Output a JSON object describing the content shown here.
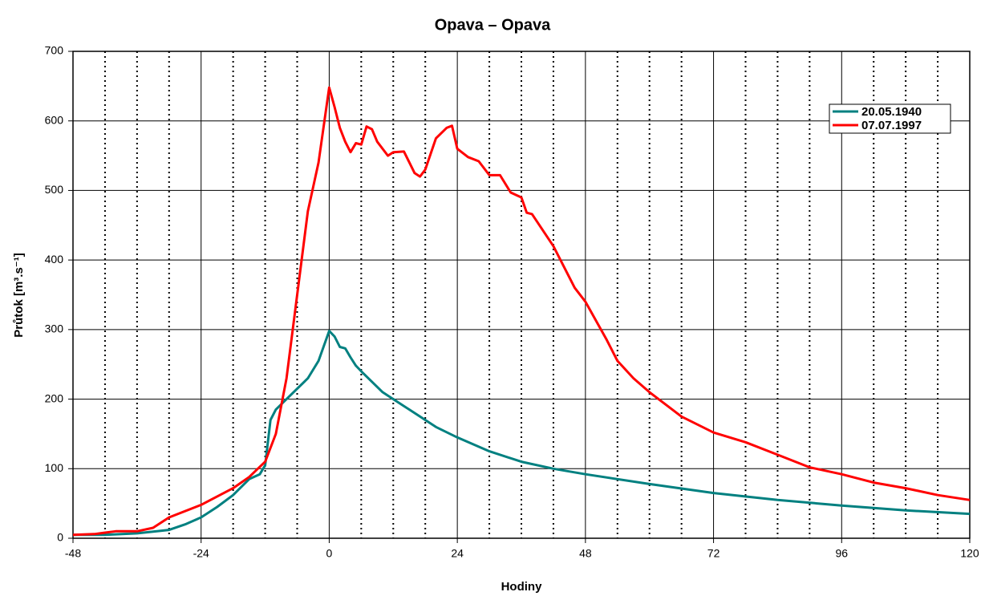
{
  "chart_data": {
    "type": "line",
    "title": "Opava – Opava",
    "xlabel": "Hodiny",
    "ylabel": "Průtok [m³.s⁻¹]",
    "xlim": [
      -48,
      120
    ],
    "xticks": [
      -48,
      -24,
      0,
      24,
      48,
      72,
      96,
      120
    ],
    "ylim": [
      0,
      700
    ],
    "yticks": [
      0,
      100,
      200,
      300,
      400,
      500,
      600,
      700
    ],
    "grid": true,
    "minor_grid_step": 6,
    "legend": "upper right",
    "series": [
      {
        "name": "20.05.1940",
        "color": "#008080",
        "x": [
          -48,
          -42,
          -36,
          -30,
          -27,
          -24,
          -21,
          -18,
          -15,
          -13,
          -12,
          -11,
          -10,
          -8,
          -6,
          -4,
          -2,
          0,
          1,
          2,
          3,
          4,
          5,
          6,
          8,
          10,
          12,
          16,
          20,
          24,
          30,
          36,
          42,
          48,
          60,
          72,
          84,
          96,
          108,
          120
        ],
        "values": [
          5,
          5,
          7,
          12,
          20,
          30,
          45,
          62,
          85,
          92,
          105,
          170,
          185,
          200,
          215,
          230,
          255,
          298,
          290,
          275,
          273,
          260,
          248,
          240,
          225,
          210,
          200,
          180,
          160,
          145,
          125,
          110,
          100,
          92,
          78,
          65,
          55,
          47,
          40,
          35
        ]
      },
      {
        "name": "07.07.1997",
        "color": "#ff0000",
        "x": [
          -48,
          -44,
          -40,
          -36,
          -33,
          -30,
          -24,
          -18,
          -15,
          -12,
          -10,
          -8,
          -6,
          -4,
          -2,
          0,
          1,
          2,
          3,
          4,
          5,
          6,
          7,
          8,
          9,
          11,
          12,
          14,
          16,
          17,
          18,
          20,
          22,
          23,
          24,
          26,
          28,
          30,
          32,
          34,
          36,
          37,
          38,
          42,
          46,
          48,
          52,
          54,
          57,
          60,
          66,
          72,
          78,
          84,
          90,
          96,
          102,
          108,
          114,
          120
        ],
        "values": [
          5,
          6,
          10,
          10,
          15,
          30,
          48,
          72,
          88,
          110,
          150,
          230,
          350,
          470,
          540,
          648,
          620,
          590,
          570,
          555,
          568,
          566,
          592,
          588,
          570,
          550,
          555,
          556,
          525,
          520,
          530,
          575,
          590,
          593,
          560,
          548,
          542,
          522,
          522,
          497,
          490,
          468,
          466,
          420,
          360,
          340,
          285,
          255,
          230,
          210,
          175,
          152,
          138,
          120,
          102,
          92,
          80,
          72,
          62,
          55
        ]
      }
    ]
  }
}
